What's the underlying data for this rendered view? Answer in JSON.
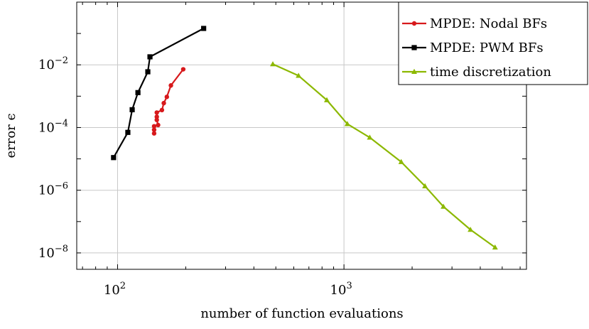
{
  "chart_data": {
    "type": "line",
    "title": "",
    "xlabel": "number of function evaluations",
    "ylabel": "error ϵ",
    "xscale": "log",
    "yscale": "log",
    "xlim": [
      66,
      6400
    ],
    "ylim": [
      3e-09,
      1.0
    ],
    "grid": true,
    "legend_position": "top-right",
    "x_ticks": [
      {
        "value": 100,
        "base": "10",
        "exp": "2"
      },
      {
        "value": 1000,
        "base": "10",
        "exp": "3"
      }
    ],
    "y_ticks": [
      {
        "value": 1e-08,
        "base": "10",
        "exp": "−8"
      },
      {
        "value": 1e-06,
        "base": "10",
        "exp": "−6"
      },
      {
        "value": 0.0001,
        "base": "10",
        "exp": "−4"
      },
      {
        "value": 0.01,
        "base": "10",
        "exp": "−2"
      }
    ],
    "series": [
      {
        "name": "MPDE: Nodal BFs",
        "color": "#d7191c",
        "marker": "circle",
        "points": [
          [
            145,
            6.5e-05
          ],
          [
            145,
            8.5e-05
          ],
          [
            145,
            0.00011
          ],
          [
            151,
            0.00012
          ],
          [
            149,
            0.000175
          ],
          [
            149,
            0.00022
          ],
          [
            149,
            0.0003
          ],
          [
            157,
            0.00036
          ],
          [
            160,
            0.0006
          ],
          [
            165,
            0.00095
          ],
          [
            172,
            0.0022
          ],
          [
            195,
            0.0072
          ]
        ]
      },
      {
        "name": "MPDE: PWM BFs",
        "color": "#000000",
        "marker": "square",
        "points": [
          [
            96,
            1.1e-05
          ],
          [
            111,
            7e-05
          ],
          [
            116,
            0.00037
          ],
          [
            123,
            0.0013
          ],
          [
            136,
            0.006
          ],
          [
            139,
            0.018
          ],
          [
            240,
            0.145
          ]
        ]
      },
      {
        "name": "time discretization",
        "color": "#8cb800",
        "marker": "triangle",
        "points": [
          [
            485,
            0.0105
          ],
          [
            630,
            0.0045
          ],
          [
            840,
            0.00075
          ],
          [
            1035,
            0.00013
          ],
          [
            1300,
            4.8e-05
          ],
          [
            1790,
            8e-06
          ],
          [
            2280,
            1.35e-06
          ],
          [
            2750,
            3e-07
          ],
          [
            3620,
            5.5e-08
          ],
          [
            4650,
            1.5e-08
          ]
        ]
      }
    ]
  }
}
